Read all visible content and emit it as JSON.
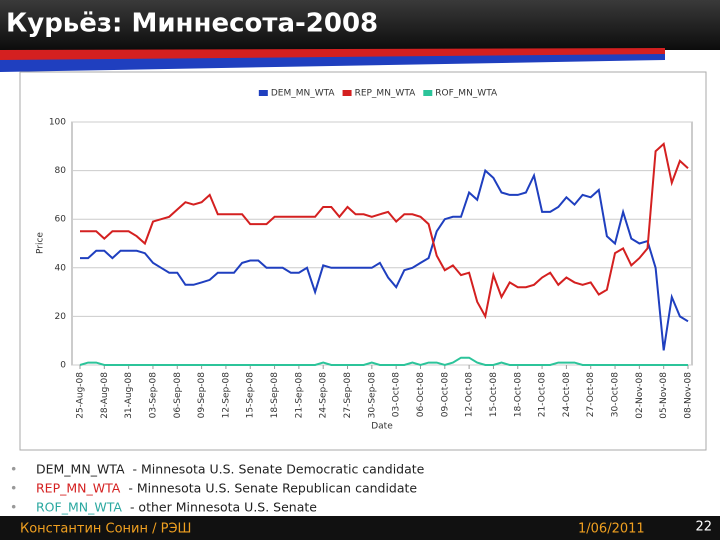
{
  "slide": {
    "title": "Курьёз: Миннесота-2008",
    "bullets": [
      {
        "term": "DEM_MN_WTA",
        "description": "- Minnesota U.S. Senate Democratic candidate"
      },
      {
        "term": "REP_MN_WTA",
        "description": "- Minnesota U.S. Senate Republican candidate"
      },
      {
        "term": "ROF_MN_WTA",
        "description": "- other Minnesota U.S. Senate"
      }
    ],
    "footer": {
      "author": "Константин Сонин / РЭШ",
      "date": "1/06/2011",
      "page": "22"
    }
  },
  "chart_data": {
    "type": "line",
    "x_label": "Date",
    "y_label": "Price",
    "legend": "top",
    "grid": true,
    "ylim": [
      0,
      100
    ],
    "yticks": [
      0,
      20,
      40,
      60,
      80,
      100
    ],
    "categories": [
      "25-Aug-08",
      null,
      null,
      "28-Aug-08",
      null,
      null,
      "31-Aug-08",
      null,
      null,
      "03-Sep-08",
      null,
      null,
      "06-Sep-08",
      null,
      null,
      "09-Sep-08",
      null,
      null,
      "12-Sep-08",
      null,
      null,
      "15-Sep-08",
      null,
      null,
      "18-Sep-08",
      null,
      null,
      "21-Sep-08",
      null,
      null,
      "24-Sep-08",
      null,
      null,
      "27-Sep-08",
      null,
      null,
      "30-Sep-08",
      null,
      null,
      "03-Oct-08",
      null,
      null,
      "06-Oct-08",
      null,
      null,
      "09-Oct-08",
      null,
      null,
      "12-Oct-08",
      null,
      null,
      "15-Oct-08",
      null,
      null,
      "18-Oct-08",
      null,
      null,
      "21-Oct-08",
      null,
      null,
      "24-Oct-08",
      null,
      null,
      "27-Oct-08",
      null,
      null,
      "30-Oct-08",
      null,
      null,
      "02-Nov-08",
      null,
      null,
      "05-Nov-08",
      null,
      null,
      "08-Nov-08"
    ],
    "series": [
      {
        "name": "DEM_MN_WTA",
        "color": "#1f3fbf",
        "values": [
          44,
          44,
          47,
          47,
          44,
          47,
          47,
          47,
          46,
          42,
          40,
          38,
          38,
          33,
          33,
          34,
          35,
          38,
          38,
          38,
          42,
          43,
          43,
          40,
          40,
          40,
          38,
          38,
          40,
          30,
          41,
          40,
          40,
          40,
          40,
          40,
          40,
          42,
          36,
          32,
          39,
          40,
          42,
          44,
          55,
          60,
          61,
          61,
          71,
          68,
          80,
          77,
          71,
          70,
          70,
          71,
          78,
          63,
          63,
          65,
          69,
          66,
          70,
          69,
          72,
          53,
          50,
          63,
          52,
          50,
          51,
          40,
          6,
          28,
          20,
          18
        ]
      },
      {
        "name": "REP_MN_WTA",
        "color": "#d42020",
        "values": [
          55,
          55,
          55,
          52,
          55,
          55,
          55,
          53,
          50,
          59,
          60,
          61,
          64,
          67,
          66,
          67,
          70,
          62,
          62,
          62,
          62,
          58,
          58,
          58,
          61,
          61,
          61,
          61,
          61,
          61,
          65,
          65,
          61,
          65,
          62,
          62,
          61,
          62,
          63,
          59,
          62,
          62,
          61,
          58,
          45,
          39,
          41,
          37,
          38,
          26,
          20,
          37,
          28,
          34,
          32,
          32,
          33,
          36,
          38,
          33,
          36,
          34,
          33,
          34,
          29,
          31,
          46,
          48,
          41,
          44,
          48,
          88,
          91,
          75,
          84,
          81
        ]
      },
      {
        "name": "ROF_MN_WTA",
        "color": "#2cc49a",
        "values": [
          0,
          1,
          1,
          0,
          0,
          0,
          0,
          0,
          0,
          0,
          0,
          0,
          0,
          0,
          0,
          0,
          0,
          0,
          0,
          0,
          0,
          0,
          0,
          0,
          0,
          0,
          0,
          0,
          0,
          0,
          1,
          0,
          0,
          0,
          0,
          0,
          1,
          0,
          0,
          0,
          0,
          1,
          0,
          1,
          1,
          0,
          1,
          3,
          3,
          1,
          0,
          0,
          1,
          0,
          0,
          0,
          0,
          0,
          0,
          1,
          1,
          1,
          0,
          0,
          0,
          0,
          0,
          0,
          0,
          0,
          0,
          0,
          0,
          0,
          0,
          0
        ]
      }
    ]
  }
}
